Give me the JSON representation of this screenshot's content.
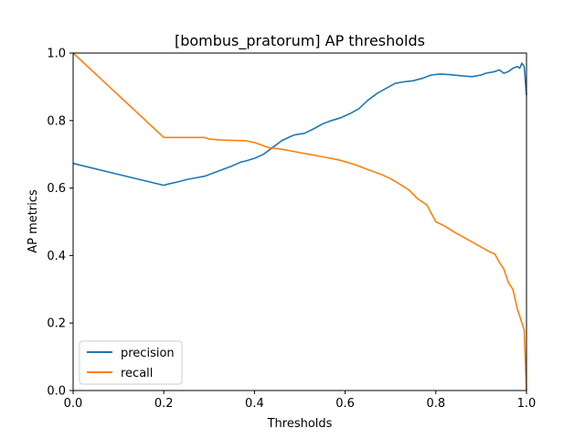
{
  "chart_data": {
    "type": "line",
    "title": "[bombus_pratorum] AP thresholds",
    "xlabel": "Thresholds",
    "ylabel": "AP metrics",
    "xlim": [
      0.0,
      1.0
    ],
    "ylim": [
      0.0,
      1.0
    ],
    "xticks": [
      "0.0",
      "0.2",
      "0.4",
      "0.6",
      "0.8",
      "1.0"
    ],
    "yticks": [
      "0.0",
      "0.2",
      "0.4",
      "0.6",
      "0.8",
      "1.0"
    ],
    "grid": false,
    "legend_position": "lower-left",
    "series": [
      {
        "name": "precision",
        "color": "#1f77b4",
        "x": [
          0.0,
          0.2,
          0.21,
          0.23,
          0.25,
          0.27,
          0.29,
          0.31,
          0.33,
          0.35,
          0.37,
          0.38,
          0.4,
          0.42,
          0.44,
          0.46,
          0.48,
          0.49,
          0.51,
          0.53,
          0.55,
          0.57,
          0.59,
          0.61,
          0.63,
          0.65,
          0.67,
          0.69,
          0.71,
          0.73,
          0.75,
          0.77,
          0.79,
          0.81,
          0.83,
          0.86,
          0.88,
          0.9,
          0.91,
          0.93,
          0.94,
          0.95,
          0.96,
          0.97,
          0.98,
          0.985,
          0.99,
          0.995,
          1.0
        ],
        "y": [
          0.673,
          0.608,
          0.612,
          0.618,
          0.625,
          0.63,
          0.635,
          0.645,
          0.655,
          0.665,
          0.677,
          0.68,
          0.688,
          0.7,
          0.72,
          0.74,
          0.753,
          0.758,
          0.762,
          0.775,
          0.79,
          0.8,
          0.808,
          0.82,
          0.835,
          0.86,
          0.88,
          0.895,
          0.91,
          0.915,
          0.918,
          0.925,
          0.935,
          0.938,
          0.936,
          0.932,
          0.93,
          0.935,
          0.94,
          0.945,
          0.95,
          0.94,
          0.945,
          0.955,
          0.96,
          0.955,
          0.97,
          0.96,
          0.875
        ]
      },
      {
        "name": "recall",
        "color": "#ff7f0e",
        "x": [
          0.0,
          0.2,
          0.25,
          0.29,
          0.3,
          0.33,
          0.38,
          0.4,
          0.43,
          0.46,
          0.48,
          0.5,
          0.52,
          0.54,
          0.56,
          0.58,
          0.6,
          0.62,
          0.64,
          0.66,
          0.68,
          0.7,
          0.72,
          0.74,
          0.76,
          0.78,
          0.8,
          0.82,
          0.84,
          0.86,
          0.88,
          0.9,
          0.92,
          0.93,
          0.94,
          0.95,
          0.96,
          0.97,
          0.975,
          0.98,
          0.985,
          0.99,
          0.995,
          1.0
        ],
        "y": [
          1.0,
          0.75,
          0.75,
          0.75,
          0.745,
          0.742,
          0.74,
          0.735,
          0.72,
          0.715,
          0.71,
          0.705,
          0.7,
          0.695,
          0.69,
          0.685,
          0.678,
          0.67,
          0.66,
          0.65,
          0.64,
          0.628,
          0.612,
          0.595,
          0.568,
          0.55,
          0.5,
          0.487,
          0.47,
          0.455,
          0.44,
          0.425,
          0.41,
          0.405,
          0.38,
          0.36,
          0.32,
          0.3,
          0.27,
          0.24,
          0.22,
          0.2,
          0.18,
          0.0
        ]
      }
    ]
  }
}
